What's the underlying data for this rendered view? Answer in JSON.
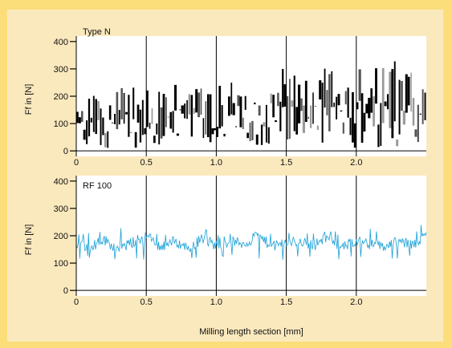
{
  "chart_data": [
    {
      "type": "line",
      "title": "Type N",
      "xlabel": "",
      "ylabel": "Ff in [N]",
      "xlim": [
        0,
        2.5
      ],
      "ylim": [
        -20,
        420
      ],
      "xticks": [
        "0",
        "0.5",
        "1.0",
        "1.5",
        "2.0"
      ],
      "yticks": [
        "0",
        "100",
        "200",
        "300",
        "400"
      ],
      "grid": "vertical lines at 0.5 mm steps, horizontal line at 0",
      "series": [
        {
          "color": "#000000",
          "style": "dense vertical force spikes",
          "x": [
            0.0,
            0.1,
            0.2,
            0.3,
            0.4,
            0.5,
            0.6,
            0.7,
            0.8,
            0.9,
            1.0,
            1.1,
            1.2,
            1.3,
            1.4,
            1.5,
            1.6,
            1.7,
            1.8,
            1.9,
            2.0,
            2.1,
            2.2,
            2.3,
            2.4,
            2.5
          ],
          "min": [
            15,
            10,
            10,
            12,
            10,
            15,
            10,
            20,
            15,
            10,
            20,
            15,
            25,
            20,
            15,
            20,
            25,
            20,
            15,
            10,
            10,
            5,
            0,
            0,
            10,
            20
          ],
          "max": [
            240,
            200,
            220,
            230,
            230,
            250,
            240,
            250,
            230,
            260,
            240,
            250,
            270,
            300,
            290,
            310,
            290,
            300,
            320,
            310,
            300,
            310,
            320,
            340,
            300,
            280
          ]
        }
      ]
    },
    {
      "type": "line",
      "title": "RF 100",
      "xlabel": "Milling length section [mm]",
      "ylabel": "Ff in [N]",
      "xlim": [
        0,
        2.5
      ],
      "ylim": [
        -20,
        420
      ],
      "xticks": [
        "0",
        "0.5",
        "1.0",
        "1.5",
        "2.0"
      ],
      "yticks": [
        "0",
        "100",
        "200",
        "300",
        "400"
      ],
      "grid": "vertical lines at 0.5 mm steps, horizontal line at 0",
      "series": [
        {
          "color": "#1aa0d6",
          "style": "continuous noisy force signal",
          "x": [
            0.0,
            0.1,
            0.2,
            0.3,
            0.4,
            0.5,
            0.6,
            0.7,
            0.8,
            0.9,
            1.0,
            1.1,
            1.2,
            1.3,
            1.4,
            1.5,
            1.6,
            1.7,
            1.8,
            1.9,
            2.0,
            2.1,
            2.2,
            2.3,
            2.4,
            2.5
          ],
          "y": [
            170,
            160,
            185,
            150,
            175,
            200,
            160,
            180,
            155,
            190,
            165,
            180,
            170,
            200,
            160,
            175,
            180,
            165,
            200,
            155,
            185,
            170,
            160,
            180,
            165,
            200
          ],
          "peaks": [
            220,
            210,
            230,
            250,
            200,
            235,
            215,
            205,
            210,
            240,
            200,
            220,
            215,
            225,
            210,
            220,
            230,
            210,
            235,
            200,
            215,
            230,
            200,
            215,
            210,
            260
          ],
          "troughs": [
            110,
            120,
            105,
            115,
            120,
            100,
            115,
            120,
            110,
            110,
            115,
            120,
            110,
            115,
            105,
            115,
            110,
            120,
            110,
            105,
            120,
            110,
            115,
            105,
            120,
            115
          ]
        }
      ]
    }
  ]
}
